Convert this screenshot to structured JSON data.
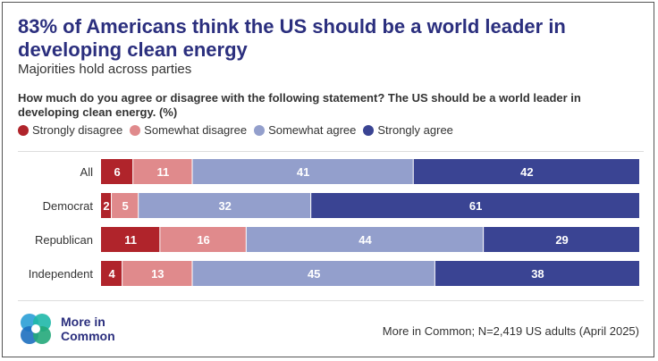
{
  "title": "83% of Americans think the US should be a world leader in developing clean energy",
  "subtitle": "Majorities hold across parties",
  "question": "How much do you agree or disagree with the following statement? The US should be a world leader in developing clean energy. (%)",
  "brand": {
    "line1": "More in",
    "line2": "Common"
  },
  "source": "More in Common; N=2,419 US adults (April 2025)",
  "colors": {
    "title": "#2b2f7e",
    "strongly_disagree": "#b0242b",
    "somewhat_disagree": "#e08a8c",
    "somewhat_agree": "#939fcc",
    "strongly_agree": "#3a4493"
  },
  "chart_data": {
    "type": "bar",
    "orientation": "horizontal",
    "stacked": true,
    "categories": [
      "All",
      "Democrat",
      "Republican",
      "Independent"
    ],
    "series": [
      {
        "name": "Strongly disagree",
        "values": [
          6,
          2,
          11,
          4
        ]
      },
      {
        "name": "Somewhat disagree",
        "values": [
          11,
          5,
          16,
          13
        ]
      },
      {
        "name": "Somewhat agree",
        "values": [
          41,
          32,
          44,
          45
        ]
      },
      {
        "name": "Strongly agree",
        "values": [
          42,
          61,
          29,
          38
        ]
      }
    ],
    "legend_position": "top-left",
    "grid": false
  }
}
